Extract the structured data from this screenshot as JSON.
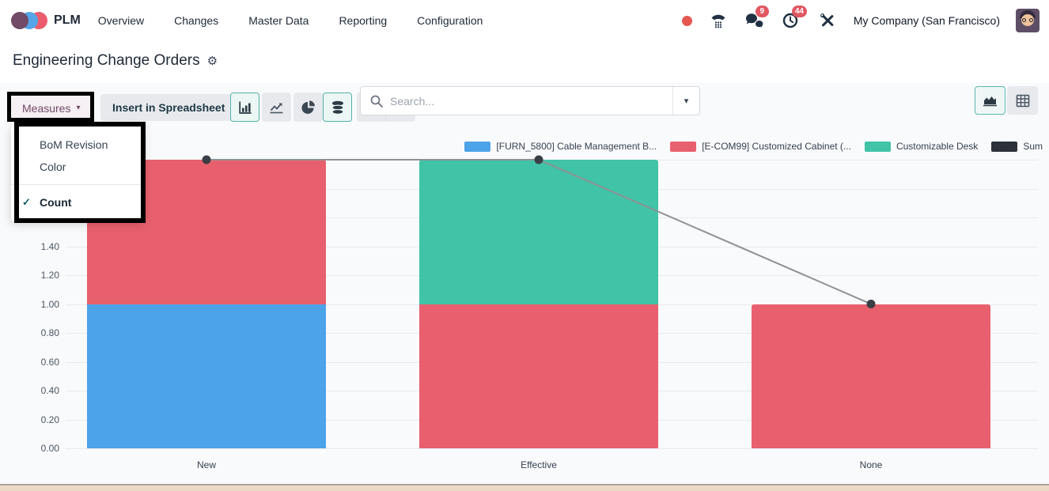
{
  "navbar": {
    "app_name": "PLM",
    "menus": [
      "Overview",
      "Changes",
      "Master Data",
      "Reporting",
      "Configuration"
    ],
    "chat_badge": "9",
    "activity_badge": "44",
    "company": "My Company (San Francisco)"
  },
  "header": {
    "title": "Engineering Change Orders"
  },
  "search": {
    "placeholder": "Search..."
  },
  "toolbar": {
    "measures_label": "Measures",
    "insert_label": "Insert in Spreadsheet"
  },
  "measures_dropdown": {
    "items": [
      "BoM Revision",
      "Color"
    ],
    "checked_item": "Count"
  },
  "colors": {
    "accent_teal_border": "#56b2aa",
    "brand_purple": "#714b67",
    "badge_red": "#e15862",
    "grid": "#e8eaec"
  },
  "chart_data": {
    "type": "bar",
    "stacked": true,
    "title": "",
    "xlabel": "",
    "ylabel": "",
    "categories": [
      "New",
      "Effective",
      "None"
    ],
    "series": [
      {
        "name": "[FURN_5800] Cable Management B...",
        "color": "#4da3e8",
        "values": [
          1,
          0,
          0
        ]
      },
      {
        "name": "[E-COM99] Customized Cabinet (...",
        "color": "#e8606e",
        "values": [
          1,
          1,
          1
        ]
      },
      {
        "name": "Customizable Desk",
        "color": "#40c3a7",
        "values": [
          0,
          1,
          0
        ]
      }
    ],
    "line_series": {
      "name": "Sum",
      "color": "#2b3238",
      "line_color": "#8f9194",
      "values": [
        2,
        2,
        1
      ]
    },
    "ylim": [
      0,
      2
    ],
    "ytick_step": 0.2,
    "visible_yticks": [
      "0.00",
      "0.20",
      "0.40",
      "0.60",
      "0.80",
      "1.00",
      "1.20",
      "1.40"
    ],
    "grid": true,
    "legend_position": "top-right"
  }
}
